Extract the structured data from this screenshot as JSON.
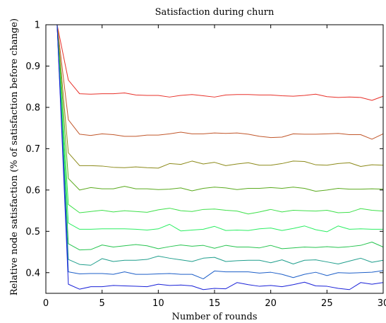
{
  "chart_data": {
    "type": "line",
    "title": "Satisfaction during churn",
    "xlabel": "Number of rounds",
    "ylabel": "Relative node satisfaction (% of satisfaction before change)",
    "xlim": [
      0,
      30
    ],
    "ylim": [
      0.35,
      1.0
    ],
    "xticks": [
      0,
      5,
      10,
      15,
      20,
      25,
      30
    ],
    "xtick_labels": [
      "0",
      "5",
      "10",
      "15",
      "20",
      "25",
      "30"
    ],
    "yticks": [
      0.4,
      0.5,
      0.6,
      0.7,
      0.8,
      0.9,
      1.0
    ],
    "ytick_labels": [
      "0.4",
      "0.5",
      "0.6",
      "0.7",
      "0.8",
      "0.9",
      "1"
    ],
    "grid": false,
    "legend": "none",
    "x": [
      1,
      2,
      3,
      4,
      5,
      6,
      7,
      8,
      9,
      10,
      11,
      12,
      13,
      14,
      15,
      16,
      17,
      18,
      19,
      20,
      21,
      22,
      23,
      24,
      25,
      26,
      27,
      28,
      29,
      30
    ],
    "series": [
      {
        "color": "#e8312a",
        "values": [
          1.0,
          0.866,
          0.833,
          0.832,
          0.833,
          0.833,
          0.835,
          0.83,
          0.829,
          0.829,
          0.825,
          0.829,
          0.831,
          0.828,
          0.825,
          0.83,
          0.831,
          0.831,
          0.83,
          0.83,
          0.828,
          0.827,
          0.829,
          0.832,
          0.826,
          0.824,
          0.825,
          0.824,
          0.817,
          0.827
        ]
      },
      {
        "color": "#c1572b",
        "values": [
          1.0,
          0.77,
          0.735,
          0.732,
          0.736,
          0.734,
          0.73,
          0.73,
          0.733,
          0.733,
          0.736,
          0.74,
          0.736,
          0.736,
          0.738,
          0.737,
          0.738,
          0.735,
          0.73,
          0.727,
          0.728,
          0.736,
          0.735,
          0.735,
          0.736,
          0.737,
          0.734,
          0.734,
          0.723,
          0.736
        ]
      },
      {
        "color": "#8c8a1a",
        "values": [
          1.0,
          0.69,
          0.659,
          0.659,
          0.658,
          0.655,
          0.654,
          0.656,
          0.654,
          0.653,
          0.664,
          0.662,
          0.67,
          0.663,
          0.667,
          0.659,
          0.663,
          0.666,
          0.66,
          0.66,
          0.664,
          0.67,
          0.669,
          0.661,
          0.66,
          0.664,
          0.666,
          0.657,
          0.661,
          0.66
        ]
      },
      {
        "color": "#5aaa1e",
        "values": [
          1.0,
          0.628,
          0.6,
          0.606,
          0.603,
          0.603,
          0.609,
          0.603,
          0.603,
          0.601,
          0.602,
          0.605,
          0.598,
          0.604,
          0.607,
          0.605,
          0.601,
          0.604,
          0.604,
          0.606,
          0.604,
          0.607,
          0.604,
          0.597,
          0.6,
          0.604,
          0.602,
          0.602,
          0.603,
          0.602
        ]
      },
      {
        "color": "#3ee04a",
        "values": [
          1.0,
          0.565,
          0.545,
          0.548,
          0.551,
          0.547,
          0.55,
          0.548,
          0.546,
          0.552,
          0.556,
          0.55,
          0.548,
          0.553,
          0.554,
          0.551,
          0.549,
          0.542,
          0.547,
          0.553,
          0.547,
          0.551,
          0.55,
          0.549,
          0.551,
          0.545,
          0.546,
          0.555,
          0.551,
          0.549
        ]
      },
      {
        "color": "#2bee62",
        "values": [
          1.0,
          0.52,
          0.505,
          0.505,
          0.506,
          0.506,
          0.506,
          0.505,
          0.503,
          0.506,
          0.517,
          0.501,
          0.503,
          0.505,
          0.512,
          0.502,
          0.503,
          0.502,
          0.506,
          0.508,
          0.502,
          0.507,
          0.513,
          0.504,
          0.499,
          0.513,
          0.505,
          0.506,
          0.505,
          0.505
        ]
      },
      {
        "color": "#26c44f",
        "values": [
          1.0,
          0.47,
          0.455,
          0.456,
          0.467,
          0.462,
          0.465,
          0.468,
          0.465,
          0.458,
          0.463,
          0.467,
          0.464,
          0.466,
          0.459,
          0.466,
          0.462,
          0.462,
          0.46,
          0.466,
          0.458,
          0.46,
          0.462,
          0.461,
          0.463,
          0.461,
          0.463,
          0.466,
          0.474,
          0.462
        ]
      },
      {
        "color": "#1f9e8c",
        "values": [
          1.0,
          0.432,
          0.42,
          0.418,
          0.434,
          0.427,
          0.43,
          0.43,
          0.432,
          0.44,
          0.435,
          0.431,
          0.427,
          0.435,
          0.437,
          0.427,
          0.429,
          0.43,
          0.43,
          0.424,
          0.431,
          0.421,
          0.43,
          0.431,
          0.426,
          0.421,
          0.428,
          0.435,
          0.425,
          0.43
        ]
      },
      {
        "color": "#1d5fc8",
        "values": [
          1.0,
          0.402,
          0.397,
          0.398,
          0.398,
          0.396,
          0.402,
          0.396,
          0.396,
          0.397,
          0.398,
          0.396,
          0.396,
          0.385,
          0.404,
          0.402,
          0.402,
          0.402,
          0.399,
          0.401,
          0.396,
          0.388,
          0.396,
          0.401,
          0.393,
          0.4,
          0.399,
          0.4,
          0.401,
          0.405
        ]
      },
      {
        "color": "#1a22d8",
        "values": [
          1.0,
          0.372,
          0.36,
          0.366,
          0.366,
          0.369,
          0.368,
          0.367,
          0.366,
          0.372,
          0.369,
          0.37,
          0.368,
          0.359,
          0.362,
          0.361,
          0.376,
          0.371,
          0.367,
          0.369,
          0.366,
          0.371,
          0.377,
          0.368,
          0.367,
          0.362,
          0.359,
          0.376,
          0.372,
          0.376
        ]
      }
    ]
  }
}
